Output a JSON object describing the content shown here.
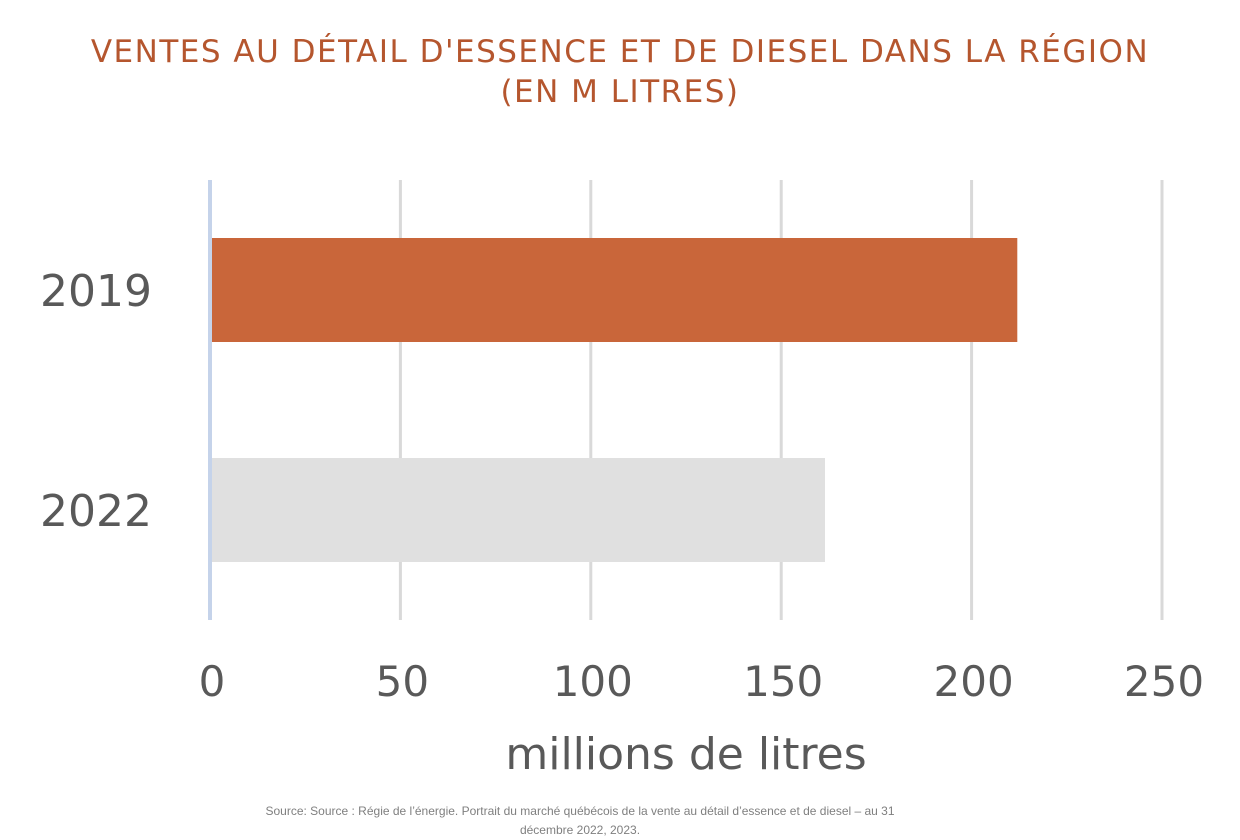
{
  "chart_data": {
    "type": "bar",
    "orientation": "horizontal",
    "title_line1": "VENTES AU DÉTAIL D'ESSENCE ET DE DIESEL DANS LA RÉGION",
    "title_line2": "(EN M LITRES)",
    "categories": [
      "2019",
      "2022"
    ],
    "values": [
      212,
      161.5
    ],
    "bar_colors": [
      "#C9663A",
      "#E0E0E0"
    ],
    "xlabel": "millions de litres",
    "ylabel": "",
    "xlim": [
      0,
      250
    ],
    "x_ticks": [
      "0",
      "50",
      "100",
      "150",
      "200",
      "250"
    ],
    "grid": true,
    "legend": "none"
  },
  "colors": {
    "title": "#B5562E",
    "axis_text": "#595959",
    "grid": "#D9D9D9",
    "axis_line": "#C5D3EA"
  },
  "source_text": "Source: Source : Régie de l’énergie. Portrait du marché québécois de la vente au détail d’essence et de diesel – au 31 décembre 2022, 2023."
}
